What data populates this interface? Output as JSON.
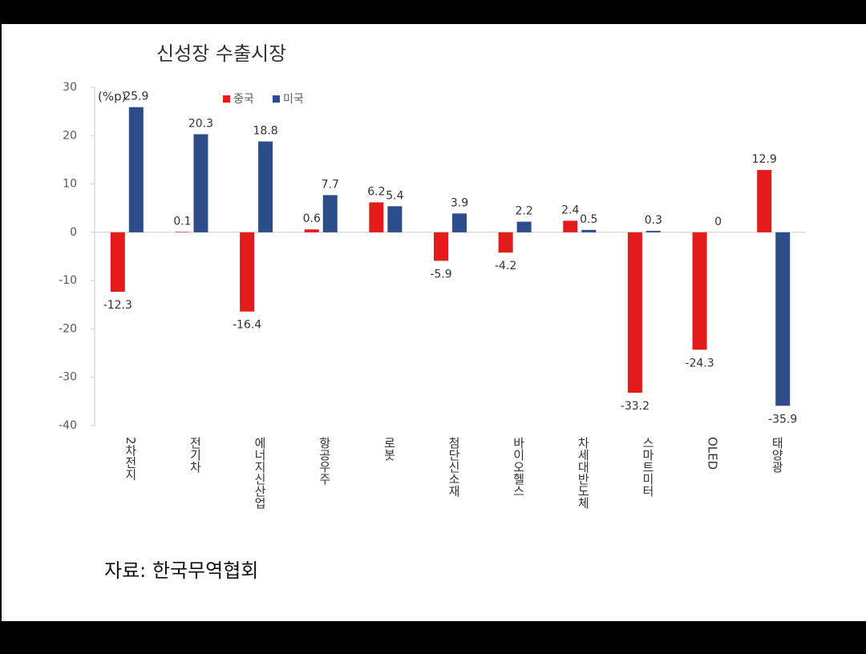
{
  "chart_data": {
    "type": "bar",
    "title": "신성장 수출시장",
    "y_unit": "(%p)",
    "source": "자료: 한국무역협회",
    "categories": [
      "2차전지",
      "전기차",
      "에너지신산업",
      "항공우주",
      "로봇",
      "첨단신소재",
      "바이오헬스",
      "차세대반도체",
      "스마트미터",
      "OLED",
      "태양광"
    ],
    "series": [
      {
        "name": "중국",
        "color": "#e31b1b",
        "values": [
          -12.3,
          0.1,
          -16.4,
          0.6,
          6.2,
          -5.9,
          -4.2,
          2.4,
          -33.2,
          -24.3,
          12.9
        ]
      },
      {
        "name": "미국",
        "color": "#2c4d8a",
        "values": [
          25.9,
          20.3,
          18.8,
          7.7,
          5.4,
          3.9,
          2.2,
          0.5,
          0.3,
          0,
          -35.9
        ]
      }
    ],
    "ylim": [
      -40,
      30
    ],
    "yticks": [
      -40,
      -30,
      -20,
      -10,
      0,
      10,
      20,
      30
    ]
  }
}
